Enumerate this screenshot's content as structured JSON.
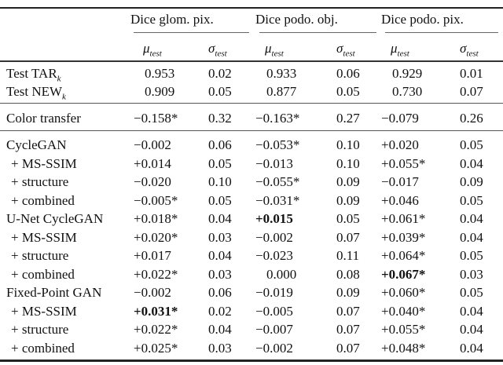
{
  "header": {
    "groups": [
      "Dice glom. pix.",
      "Dice podo. obj.",
      "Dice podo. pix."
    ],
    "mu_label": "μ",
    "sigma_label": "σ",
    "subscript": "test"
  },
  "rows": [
    {
      "label": "Test TAR",
      "label_sub": "k",
      "cells": [
        "0.953",
        "0.02",
        "0.933",
        "0.06",
        "0.929",
        "0.01"
      ],
      "bold": []
    },
    {
      "label": "Test NEW",
      "label_sub": "k",
      "cells": [
        "0.909",
        "0.05",
        "0.877",
        "0.05",
        "0.730",
        "0.07"
      ],
      "bold": []
    },
    {
      "label": "Color transfer",
      "cells": [
        "−0.158*",
        "0.32",
        "−0.163*",
        "0.27",
        "−0.079",
        "0.26"
      ],
      "bold": []
    },
    {
      "label": "CycleGAN",
      "cells": [
        "−0.002",
        "0.06",
        "−0.053*",
        "0.10",
        "+0.020",
        "0.05"
      ],
      "bold": []
    },
    {
      "label": "+ MS-SSIM",
      "indent": true,
      "cells": [
        "+0.014",
        "0.05",
        "−0.013",
        "0.10",
        "+0.055*",
        "0.04"
      ],
      "bold": []
    },
    {
      "label": "+ structure",
      "indent": true,
      "cells": [
        "−0.020",
        "0.10",
        "−0.055*",
        "0.09",
        "−0.017",
        "0.09"
      ],
      "bold": []
    },
    {
      "label": "+ combined",
      "indent": true,
      "cells": [
        "−0.005*",
        "0.05",
        "−0.031*",
        "0.09",
        "+0.046",
        "0.05"
      ],
      "bold": []
    },
    {
      "label": "U-Net CycleGAN",
      "cells": [
        "+0.018*",
        "0.04",
        "+0.015",
        "0.05",
        "+0.061*",
        "0.04"
      ],
      "bold": [
        2
      ]
    },
    {
      "label": "+ MS-SSIM",
      "indent": true,
      "cells": [
        "+0.020*",
        "0.03",
        "−0.002",
        "0.07",
        "+0.039*",
        "0.04"
      ],
      "bold": []
    },
    {
      "label": "+ structure",
      "indent": true,
      "cells": [
        "+0.017",
        "0.04",
        "−0.023",
        "0.11",
        "+0.064*",
        "0.05"
      ],
      "bold": []
    },
    {
      "label": "+ combined",
      "indent": true,
      "cells": [
        "+0.022*",
        "0.03",
        "0.000",
        "0.08",
        "+0.067*",
        "0.03"
      ],
      "bold": [
        4
      ]
    },
    {
      "label": "Fixed-Point GAN",
      "cells": [
        "−0.002",
        "0.06",
        "−0.019",
        "0.09",
        "+0.060*",
        "0.05"
      ],
      "bold": []
    },
    {
      "label": "+ MS-SSIM",
      "indent": true,
      "cells": [
        "+0.031*",
        "0.02",
        "−0.005",
        "0.07",
        "+0.040*",
        "0.04"
      ],
      "bold": [
        0
      ]
    },
    {
      "label": "+ structure",
      "indent": true,
      "cells": [
        "+0.022*",
        "0.04",
        "−0.007",
        "0.07",
        "+0.055*",
        "0.04"
      ],
      "bold": []
    },
    {
      "label": "+ combined",
      "indent": true,
      "cells": [
        "+0.025*",
        "0.03",
        "−0.002",
        "0.07",
        "+0.048*",
        "0.04"
      ],
      "bold": []
    }
  ]
}
